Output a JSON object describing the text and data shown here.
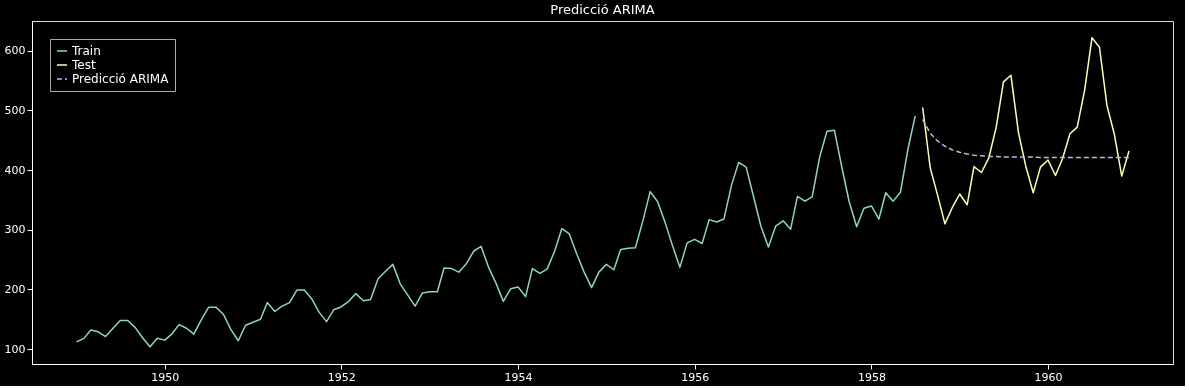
{
  "chart_data": {
    "type": "line",
    "title": "Predicció ARIMA",
    "xlim": [
      "1948-07",
      "1961-06"
    ],
    "xticks": [
      {
        "value": "1950",
        "label": "1950"
      },
      {
        "value": "1952",
        "label": "1952"
      },
      {
        "value": "1954",
        "label": "1954"
      },
      {
        "value": "1956",
        "label": "1956"
      },
      {
        "value": "1958",
        "label": "1958"
      },
      {
        "value": "1960",
        "label": "1960"
      }
    ],
    "ylim": [
      75,
      650
    ],
    "yticks": [
      100,
      200,
      300,
      400,
      500,
      600
    ],
    "grid": false,
    "legend": "top left",
    "marker": "none",
    "series": [
      {
        "name": "Train",
        "color": "#8dd3c7",
        "line_style": "solid",
        "x": [
          "1949-01",
          "1949-02",
          "1949-03",
          "1949-04",
          "1949-05",
          "1949-06",
          "1949-07",
          "1949-08",
          "1949-09",
          "1949-10",
          "1949-11",
          "1949-12",
          "1950-01",
          "1950-02",
          "1950-03",
          "1950-04",
          "1950-05",
          "1950-06",
          "1950-07",
          "1950-08",
          "1950-09",
          "1950-10",
          "1950-11",
          "1950-12",
          "1951-01",
          "1951-02",
          "1951-03",
          "1951-04",
          "1951-05",
          "1951-06",
          "1951-07",
          "1951-08",
          "1951-09",
          "1951-10",
          "1951-11",
          "1951-12",
          "1952-01",
          "1952-02",
          "1952-03",
          "1952-04",
          "1952-05",
          "1952-06",
          "1952-07",
          "1952-08",
          "1952-09",
          "1952-10",
          "1952-11",
          "1952-12",
          "1953-01",
          "1953-02",
          "1953-03",
          "1953-04",
          "1953-05",
          "1953-06",
          "1953-07",
          "1953-08",
          "1953-09",
          "1953-10",
          "1953-11",
          "1953-12",
          "1954-01",
          "1954-02",
          "1954-03",
          "1954-04",
          "1954-05",
          "1954-06",
          "1954-07",
          "1954-08",
          "1954-09",
          "1954-10",
          "1954-11",
          "1954-12",
          "1955-01",
          "1955-02",
          "1955-03",
          "1955-04",
          "1955-05",
          "1955-06",
          "1955-07",
          "1955-08",
          "1955-09",
          "1955-10",
          "1955-11",
          "1955-12",
          "1956-01",
          "1956-02",
          "1956-03",
          "1956-04",
          "1956-05",
          "1956-06",
          "1956-07",
          "1956-08",
          "1956-09",
          "1956-10",
          "1956-11",
          "1956-12",
          "1957-01",
          "1957-02",
          "1957-03",
          "1957-04",
          "1957-05",
          "1957-06",
          "1957-07",
          "1957-08",
          "1957-09",
          "1957-10",
          "1957-11",
          "1957-12",
          "1958-01",
          "1958-02",
          "1958-03",
          "1958-04",
          "1958-05",
          "1958-06",
          "1958-07"
        ],
        "values": [
          112,
          118,
          132,
          129,
          121,
          135,
          148,
          148,
          136,
          119,
          104,
          118,
          115,
          126,
          141,
          135,
          125,
          149,
          170,
          170,
          158,
          133,
          114,
          140,
          145,
          150,
          178,
          163,
          172,
          178,
          199,
          199,
          184,
          162,
          146,
          166,
          171,
          180,
          193,
          181,
          183,
          218,
          230,
          242,
          209,
          191,
          172,
          194,
          196,
          196,
          236,
          235,
          229,
          243,
          264,
          272,
          237,
          211,
          180,
          201,
          204,
          188,
          235,
          227,
          234,
          264,
          302,
          293,
          259,
          229,
          203,
          229,
          242,
          233,
          267,
          269,
          270,
          315,
          364,
          347,
          312,
          274,
          237,
          278,
          284,
          277,
          317,
          313,
          318,
          374,
          413,
          405,
          355,
          306,
          271,
          306,
          315,
          301,
          356,
          348,
          355,
          422,
          465,
          467,
          404,
          347,
          305,
          336,
          340,
          318,
          362,
          348,
          363,
          435,
          491
        ]
      },
      {
        "name": "Test",
        "color": "#feffb3",
        "line_style": "solid",
        "x": [
          "1958-08",
          "1958-09",
          "1958-10",
          "1958-11",
          "1958-12",
          "1959-01",
          "1959-02",
          "1959-03",
          "1959-04",
          "1959-05",
          "1959-06",
          "1959-07",
          "1959-08",
          "1959-09",
          "1959-10",
          "1959-11",
          "1959-12",
          "1960-01",
          "1960-02",
          "1960-03",
          "1960-04",
          "1960-05",
          "1960-06",
          "1960-07",
          "1960-08",
          "1960-09",
          "1960-10",
          "1960-11",
          "1960-12"
        ],
        "values": [
          505,
          404,
          359,
          310,
          337,
          360,
          342,
          406,
          396,
          420,
          472,
          548,
          559,
          463,
          407,
          362,
          405,
          417,
          391,
          419,
          461,
          472,
          535,
          622,
          606,
          508,
          461,
          390,
          432
        ]
      },
      {
        "name": "Predicció ARIMA",
        "color": "#bebada",
        "line_style": "dashed",
        "x": [
          "1958-08",
          "1958-09",
          "1958-10",
          "1958-11",
          "1958-12",
          "1959-01",
          "1959-02",
          "1959-03",
          "1959-04",
          "1959-05",
          "1959-06",
          "1959-07",
          "1959-08",
          "1959-09",
          "1959-10",
          "1959-11",
          "1959-12",
          "1960-01",
          "1960-02",
          "1960-03",
          "1960-04",
          "1960-05",
          "1960-06",
          "1960-07",
          "1960-08",
          "1960-09",
          "1960-10",
          "1960-11",
          "1960-12"
        ],
        "values": [
          485,
          462,
          449,
          440,
          434,
          430,
          427,
          425,
          424,
          423,
          423,
          422,
          422,
          422,
          422,
          422,
          421,
          421,
          421,
          421,
          421,
          421,
          421,
          421,
          421,
          421,
          421,
          421,
          421
        ]
      }
    ]
  }
}
